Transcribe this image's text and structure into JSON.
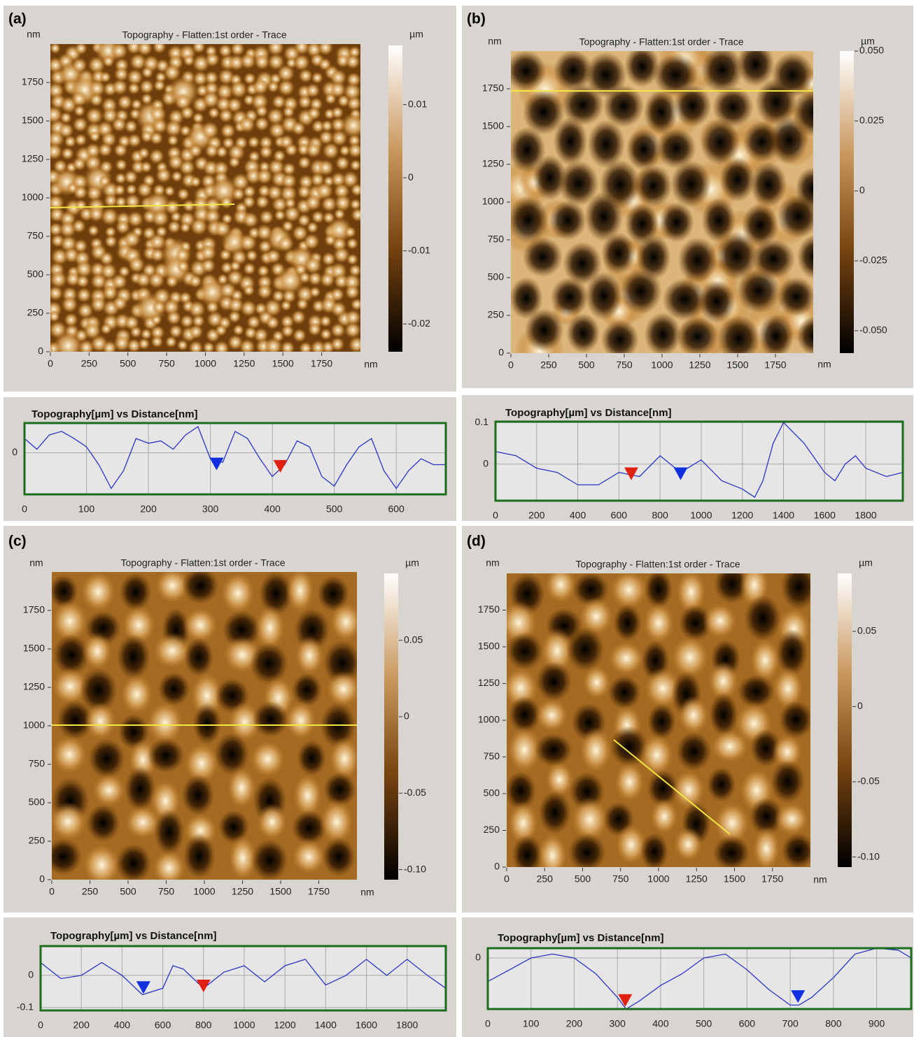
{
  "chart_data": [
    {
      "type": "heatmap",
      "panel": "(a)",
      "title": "Topography  -  Flatten:1st order  -  Trace",
      "xlabel": "nm",
      "ylabel": "nm",
      "xlim": [
        0,
        2000
      ],
      "xticks": [
        0,
        250,
        500,
        750,
        1000,
        1250,
        1500,
        1750
      ],
      "ylim": [
        0,
        2000
      ],
      "yticks": [
        0,
        250,
        500,
        750,
        1000,
        1250,
        1500,
        1750
      ],
      "colorbar": {
        "label": "µm",
        "lim": [
          -0.0238,
          0.0181
        ],
        "ticks": [
          0.01,
          0,
          -0.01,
          -0.02
        ]
      }
    },
    {
      "type": "line",
      "title": "Topography[µm] vs Distance[nm]",
      "xlim": [
        0,
        680
      ],
      "xticks": [
        0,
        100,
        200,
        300,
        400,
        500,
        600
      ],
      "ylim": [
        -0.035,
        0.025
      ],
      "yticks": [
        0
      ],
      "grid": true,
      "color": "#2a35c8",
      "x": [
        0,
        20,
        40,
        60,
        80,
        100,
        120,
        140,
        160,
        180,
        200,
        220,
        240,
        260,
        280,
        300,
        320,
        340,
        360,
        380,
        400,
        420,
        440,
        460,
        480,
        500,
        520,
        540,
        560,
        580,
        600,
        620,
        640,
        660,
        680
      ],
      "values": [
        0.012,
        0.003,
        0.015,
        0.018,
        0.012,
        0.005,
        -0.01,
        -0.03,
        -0.015,
        0.012,
        0.008,
        0.01,
        0.003,
        0.015,
        0.022,
        -0.005,
        -0.008,
        0.018,
        0.012,
        -0.005,
        -0.02,
        -0.01,
        0.01,
        0.005,
        -0.02,
        -0.028,
        -0.01,
        0.005,
        0.012,
        -0.015,
        -0.03,
        -0.015,
        -0.005,
        -0.01,
        -0.01
      ],
      "markers": {
        "x": [
          310,
          413
        ],
        "values": [
          -0.01,
          -0.012
        ],
        "colors": [
          "#1030e0",
          "#e02010"
        ]
      }
    },
    {
      "type": "heatmap",
      "panel": "(b)",
      "title": "Topography  -  Flatten:1st order  -  Trace",
      "xlabel": "nm",
      "ylabel": "nm",
      "xlim": [
        0,
        2000
      ],
      "xticks": [
        0,
        250,
        500,
        750,
        1000,
        1250,
        1500,
        1750
      ],
      "ylim": [
        0,
        2000
      ],
      "yticks": [
        0,
        250,
        500,
        750,
        1000,
        1250,
        1500,
        1750
      ],
      "colorbar": {
        "label": "µm",
        "lim": [
          -0.058,
          0.05
        ],
        "ticks": [
          {
            "value": 0.05,
            "label": "0.050"
          },
          0.025,
          0,
          -0.025,
          {
            "value": -0.05,
            "label": "-0.050"
          }
        ]
      }
    },
    {
      "type": "line",
      "title": "Topography[µm] vs Distance[nm]",
      "xlim": [
        0,
        1980
      ],
      "xticks": [
        0,
        200,
        400,
        600,
        800,
        1000,
        1200,
        1400,
        1600,
        1800
      ],
      "ylim": [
        -0.088,
        0.102
      ],
      "yticks": [
        0.1,
        0
      ],
      "grid": true,
      "color": "#2a35c8",
      "x": [
        0,
        100,
        200,
        300,
        400,
        500,
        600,
        700,
        800,
        900,
        1000,
        1100,
        1200,
        1260,
        1300,
        1350,
        1400,
        1500,
        1600,
        1650,
        1700,
        1750,
        1800,
        1900,
        1980
      ],
      "values": [
        0.03,
        0.02,
        -0.01,
        -0.02,
        -0.05,
        -0.05,
        -0.02,
        -0.03,
        0.02,
        -0.02,
        0.01,
        -0.04,
        -0.06,
        -0.08,
        -0.04,
        0.05,
        0.1,
        0.05,
        -0.02,
        -0.04,
        0.0,
        0.02,
        -0.01,
        -0.03,
        -0.02
      ],
      "markers": {
        "x": [
          660,
          900
        ],
        "values": [
          -0.025,
          -0.025
        ],
        "colors": [
          "#e02010",
          "#1030e0"
        ]
      }
    },
    {
      "type": "heatmap",
      "panel": "(c)",
      "title": "Topography  -  Flatten:1st order  -  Trace",
      "xlabel": "nm",
      "ylabel": "nm",
      "xlim": [
        0,
        2000
      ],
      "xticks": [
        0,
        250,
        500,
        750,
        1000,
        1250,
        1500,
        1750
      ],
      "ylim": [
        0,
        2000
      ],
      "yticks": [
        0,
        250,
        500,
        750,
        1000,
        1250,
        1500,
        1750
      ],
      "colorbar": {
        "label": "µm",
        "lim": [
          -0.1066,
          0.0938
        ],
        "ticks": [
          0.05,
          0,
          -0.05,
          {
            "value": -0.1,
            "label": "-0.10"
          }
        ]
      }
    },
    {
      "type": "line",
      "title": "Topography[µm] vs Distance[nm]",
      "xlim": [
        0,
        1990
      ],
      "xticks": [
        0,
        200,
        400,
        600,
        800,
        1000,
        1200,
        1400,
        1600,
        1800
      ],
      "ylim": [
        -0.109,
        0.091
      ],
      "yticks": [
        0,
        -0.1
      ],
      "grid": true,
      "color": "#2a35c8",
      "x": [
        0,
        100,
        200,
        300,
        400,
        500,
        600,
        650,
        700,
        800,
        900,
        1000,
        1100,
        1200,
        1300,
        1400,
        1500,
        1600,
        1700,
        1800,
        1900,
        1990
      ],
      "values": [
        0.04,
        -0.01,
        0.0,
        0.04,
        0.0,
        -0.06,
        -0.04,
        0.03,
        0.02,
        -0.04,
        0.01,
        0.03,
        -0.02,
        0.03,
        0.05,
        -0.03,
        0.0,
        0.05,
        0.0,
        0.05,
        0.0,
        -0.04
      ],
      "markers": {
        "x": [
          505,
          800
        ],
        "values": [
          -0.04,
          -0.035
        ],
        "colors": [
          "#1030e0",
          "#e02010"
        ]
      }
    },
    {
      "type": "heatmap",
      "panel": "(d)",
      "title": "Topography  -  Flatten:1st order  -  Trace",
      "xlabel": "nm",
      "ylabel": "nm",
      "xlim": [
        0,
        2000
      ],
      "xticks": [
        0,
        250,
        500,
        750,
        1000,
        1250,
        1500,
        1750
      ],
      "ylim": [
        0,
        2000
      ],
      "yticks": [
        0,
        250,
        500,
        750,
        1000,
        1250,
        1500,
        1750
      ],
      "colorbar": {
        "label": "µm",
        "lim": [
          -0.1067,
          0.0885
        ],
        "ticks": [
          0.05,
          0,
          -0.05,
          {
            "value": -0.1,
            "label": "-0.10"
          }
        ]
      }
    },
    {
      "type": "line",
      "title": "Topography[µm] vs Distance[nm]",
      "xlim": [
        0,
        980
      ],
      "xticks": [
        0,
        100,
        200,
        300,
        400,
        500,
        600,
        700,
        800,
        900
      ],
      "ylim": [
        -0.13,
        0.025
      ],
      "yticks": [
        0
      ],
      "grid": true,
      "color": "#2a35c8",
      "x": [
        0,
        50,
        100,
        150,
        200,
        250,
        300,
        320,
        350,
        400,
        450,
        500,
        550,
        600,
        650,
        700,
        720,
        750,
        800,
        850,
        900,
        950,
        980
      ],
      "values": [
        -0.06,
        -0.03,
        0.0,
        0.01,
        0.0,
        -0.04,
        -0.1,
        -0.13,
        -0.11,
        -0.07,
        -0.04,
        0.0,
        0.01,
        -0.03,
        -0.08,
        -0.12,
        -0.12,
        -0.1,
        -0.05,
        0.01,
        0.025,
        0.02,
        0.0
      ],
      "markers": {
        "x": [
          318,
          718
        ],
        "values": [
          -0.11,
          -0.1
        ],
        "colors": [
          "#e02010",
          "#1030e0"
        ]
      }
    }
  ]
}
